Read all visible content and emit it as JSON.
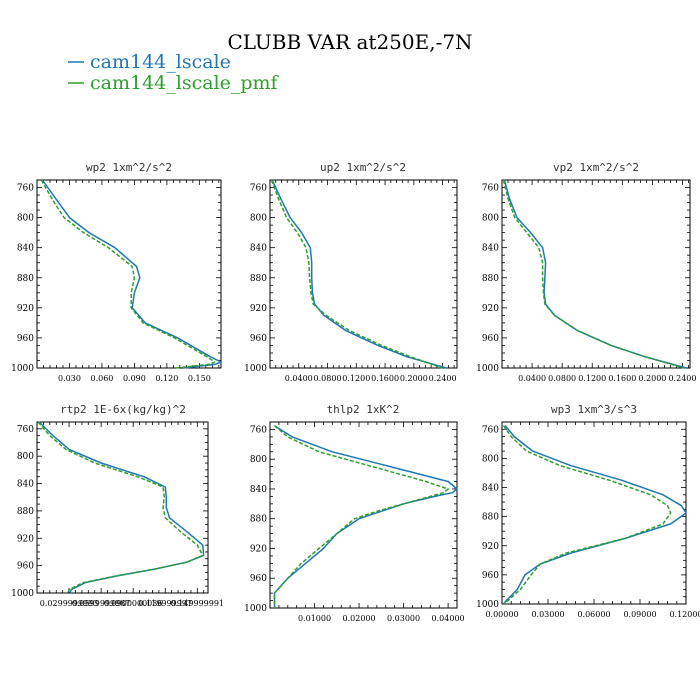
{
  "figure": {
    "title": "CLUBB VAR at250E,-7N",
    "legend": [
      {
        "label": "cam144_lscale",
        "color": "#1f77b4"
      },
      {
        "label": "cam144_lscale_pmf",
        "color": "#2ca02c"
      }
    ]
  },
  "chart_data": [
    {
      "type": "line",
      "title": "wp2   1xm^2/s^2",
      "xlim": [
        0.0,
        0.17
      ],
      "ylim": [
        750,
        1000
      ],
      "xticks": [
        "0.030",
        "0.060",
        "0.090",
        "0.120",
        "0.150"
      ],
      "xtick_values": [
        0.03,
        0.06,
        0.09,
        0.12,
        0.15
      ],
      "yticks": [
        "760",
        "800",
        "840",
        "880",
        "920",
        "960",
        "1000"
      ],
      "ytick_values": [
        760,
        800,
        840,
        880,
        920,
        960,
        1000
      ],
      "series": [
        {
          "name": "cam144_lscale",
          "color": "#1f77b4",
          "dash": "",
          "y": [
            750,
            780,
            800,
            820,
            840,
            865,
            880,
            900,
            920,
            940,
            960,
            985,
            992,
            995,
            1000
          ],
          "x": [
            0.005,
            0.02,
            0.03,
            0.048,
            0.072,
            0.092,
            0.095,
            0.09,
            0.088,
            0.1,
            0.13,
            0.16,
            0.17,
            0.165,
            0.135
          ]
        },
        {
          "name": "cam144_lscale_pmf",
          "color": "#2ca02c",
          "dash": "4 2",
          "y": [
            750,
            780,
            800,
            820,
            840,
            865,
            880,
            900,
            920,
            940,
            960,
            985,
            992,
            995,
            1000
          ],
          "x": [
            0.004,
            0.016,
            0.025,
            0.043,
            0.066,
            0.088,
            0.09,
            0.087,
            0.087,
            0.098,
            0.127,
            0.157,
            0.164,
            0.16,
            0.128
          ]
        }
      ]
    },
    {
      "type": "line",
      "title": "up2   1xm^2/s^2",
      "xlim": [
        0.0,
        0.26
      ],
      "ylim": [
        750,
        1000
      ],
      "xticks": [
        "0.0400",
        "0.0800",
        "0.1200",
        "0.1600",
        "0.2000",
        "0.2400"
      ],
      "xtick_values": [
        0.04,
        0.08,
        0.12,
        0.16,
        0.2,
        0.24
      ],
      "yticks": [
        "760",
        "800",
        "840",
        "880",
        "920",
        "960",
        "1000"
      ],
      "ytick_values": [
        760,
        800,
        840,
        880,
        920,
        960,
        1000
      ],
      "series": [
        {
          "name": "cam144_lscale",
          "color": "#1f77b4",
          "dash": "",
          "y": [
            750,
            775,
            800,
            820,
            840,
            860,
            880,
            900,
            915,
            930,
            950,
            970,
            985,
            1000
          ],
          "x": [
            0.003,
            0.015,
            0.028,
            0.044,
            0.056,
            0.058,
            0.058,
            0.059,
            0.062,
            0.075,
            0.105,
            0.15,
            0.19,
            0.245
          ]
        },
        {
          "name": "cam144_lscale_pmf",
          "color": "#2ca02c",
          "dash": "4 2",
          "y": [
            750,
            775,
            800,
            820,
            840,
            860,
            880,
            900,
            915,
            930,
            950,
            970,
            985,
            1000
          ],
          "x": [
            0.002,
            0.012,
            0.023,
            0.038,
            0.05,
            0.054,
            0.055,
            0.057,
            0.06,
            0.078,
            0.11,
            0.155,
            0.195,
            0.24
          ]
        }
      ]
    },
    {
      "type": "line",
      "title": "vp2   1xm^2/s^2",
      "xlim": [
        0.0,
        0.25
      ],
      "ylim": [
        750,
        1000
      ],
      "xticks": [
        "0.0400",
        "0.0800",
        "0.1200",
        "0.1600",
        "0.2000",
        "0.2400"
      ],
      "xtick_values": [
        0.04,
        0.08,
        0.12,
        0.16,
        0.2,
        0.24
      ],
      "yticks": [
        "760",
        "800",
        "840",
        "880",
        "920",
        "960",
        "1000"
      ],
      "ytick_values": [
        760,
        800,
        840,
        880,
        920,
        960,
        1000
      ],
      "series": [
        {
          "name": "cam144_lscale",
          "color": "#1f77b4",
          "dash": "",
          "y": [
            750,
            775,
            800,
            820,
            840,
            860,
            880,
            900,
            915,
            930,
            950,
            970,
            985,
            1000
          ],
          "x": [
            0.003,
            0.01,
            0.02,
            0.038,
            0.054,
            0.058,
            0.057,
            0.056,
            0.058,
            0.07,
            0.1,
            0.145,
            0.19,
            0.245
          ]
        },
        {
          "name": "cam144_lscale_pmf",
          "color": "#2ca02c",
          "dash": "4 2",
          "y": [
            750,
            775,
            800,
            820,
            840,
            860,
            880,
            900,
            915,
            930,
            950,
            970,
            985,
            1000
          ],
          "x": [
            0.002,
            0.008,
            0.017,
            0.033,
            0.049,
            0.054,
            0.054,
            0.055,
            0.057,
            0.07,
            0.1,
            0.145,
            0.19,
            0.242
          ]
        }
      ]
    },
    {
      "type": "line",
      "title": "rtp2   1E-6x(kg/kg)^2",
      "xlim": [
        0.0,
        0.16
      ],
      "ylim": [
        750,
        1000
      ],
      "xticks": [
        "0.0299999993",
        "0.0599999987",
        "0.0900000036",
        "0.119999997",
        "0.149999991"
      ],
      "xtick_values": [
        0.03,
        0.06,
        0.09,
        0.12,
        0.15
      ],
      "yticks": [
        "760",
        "800",
        "840",
        "880",
        "920",
        "960",
        "1000"
      ],
      "ytick_values": [
        760,
        800,
        840,
        880,
        920,
        960,
        1000
      ],
      "series": [
        {
          "name": "cam144_lscale",
          "color": "#1f77b4",
          "dash": "",
          "y": [
            750,
            770,
            790,
            810,
            830,
            845,
            860,
            875,
            890,
            910,
            930,
            945,
            955,
            965,
            975,
            985,
            995,
            1000
          ],
          "x": [
            0.002,
            0.015,
            0.03,
            0.06,
            0.1,
            0.12,
            0.121,
            0.121,
            0.124,
            0.14,
            0.155,
            0.156,
            0.14,
            0.11,
            0.075,
            0.045,
            0.032,
            0.031
          ]
        },
        {
          "name": "cam144_lscale_pmf",
          "color": "#2ca02c",
          "dash": "4 2",
          "y": [
            750,
            770,
            790,
            810,
            830,
            845,
            860,
            875,
            890,
            910,
            930,
            945,
            955,
            965,
            975,
            985,
            995,
            1000
          ],
          "x": [
            0.001,
            0.012,
            0.027,
            0.054,
            0.094,
            0.118,
            0.119,
            0.118,
            0.12,
            0.134,
            0.15,
            0.155,
            0.14,
            0.11,
            0.074,
            0.043,
            0.03,
            0.029
          ]
        }
      ]
    },
    {
      "type": "line",
      "title": "thlp2   1xK^2",
      "xlim": [
        0.0,
        0.042
      ],
      "ylim": [
        750,
        1000
      ],
      "xticks": [
        "0.01000",
        "0.02000",
        "0.03000",
        "0.04000"
      ],
      "xtick_values": [
        0.01,
        0.02,
        0.03,
        0.04
      ],
      "yticks": [
        "760",
        "800",
        "840",
        "880",
        "920",
        "960",
        "1000"
      ],
      "ytick_values": [
        760,
        800,
        840,
        880,
        920,
        960,
        1000
      ],
      "series": [
        {
          "name": "cam144_lscale",
          "color": "#1f77b4",
          "dash": "",
          "y": [
            755,
            770,
            790,
            810,
            830,
            840,
            845,
            850,
            860,
            870,
            880,
            900,
            920,
            940,
            960,
            980,
            1000
          ],
          "x": [
            0.001,
            0.005,
            0.014,
            0.027,
            0.04,
            0.042,
            0.041,
            0.037,
            0.03,
            0.025,
            0.02,
            0.015,
            0.012,
            0.008,
            0.004,
            0.001,
            0.001
          ]
        },
        {
          "name": "cam144_lscale_pmf",
          "color": "#2ca02c",
          "dash": "4 2",
          "y": [
            755,
            770,
            790,
            810,
            830,
            840,
            845,
            850,
            860,
            870,
            880,
            900,
            920,
            940,
            960,
            980,
            1000
          ],
          "x": [
            0.001,
            0.004,
            0.011,
            0.023,
            0.035,
            0.04,
            0.039,
            0.036,
            0.03,
            0.024,
            0.019,
            0.015,
            0.011,
            0.007,
            0.004,
            0.001,
            0.001
          ]
        }
      ]
    },
    {
      "type": "line",
      "title": "wp3   1xm^3/s^3",
      "xlim": [
        0.0,
        0.12
      ],
      "ylim": [
        750,
        1000
      ],
      "xticks": [
        "0.00000",
        "0.03000",
        "0.06000",
        "0.09000",
        "0.12000"
      ],
      "xtick_values": [
        0.0,
        0.03,
        0.06,
        0.09,
        0.12
      ],
      "yticks": [
        "760",
        "800",
        "840",
        "880",
        "920",
        "960",
        "1000"
      ],
      "ytick_values": [
        760,
        800,
        840,
        880,
        920,
        960,
        1000
      ],
      "series": [
        {
          "name": "cam144_lscale",
          "color": "#1f77b4",
          "dash": "",
          "y": [
            755,
            770,
            790,
            810,
            830,
            850,
            865,
            875,
            890,
            910,
            930,
            945,
            960,
            980,
            995,
            1000
          ],
          "x": [
            0.002,
            0.008,
            0.02,
            0.045,
            0.078,
            0.105,
            0.117,
            0.12,
            0.11,
            0.08,
            0.045,
            0.025,
            0.015,
            0.01,
            0.003,
            0.001
          ]
        },
        {
          "name": "cam144_lscale_pmf",
          "color": "#2ca02c",
          "dash": "4 2",
          "y": [
            755,
            770,
            790,
            810,
            830,
            850,
            865,
            875,
            890,
            910,
            930,
            945,
            960,
            980,
            995,
            1000
          ],
          "x": [
            0.001,
            0.006,
            0.016,
            0.038,
            0.07,
            0.097,
            0.108,
            0.11,
            0.105,
            0.08,
            0.042,
            0.025,
            0.019,
            0.012,
            0.004,
            0.001
          ]
        }
      ]
    }
  ]
}
